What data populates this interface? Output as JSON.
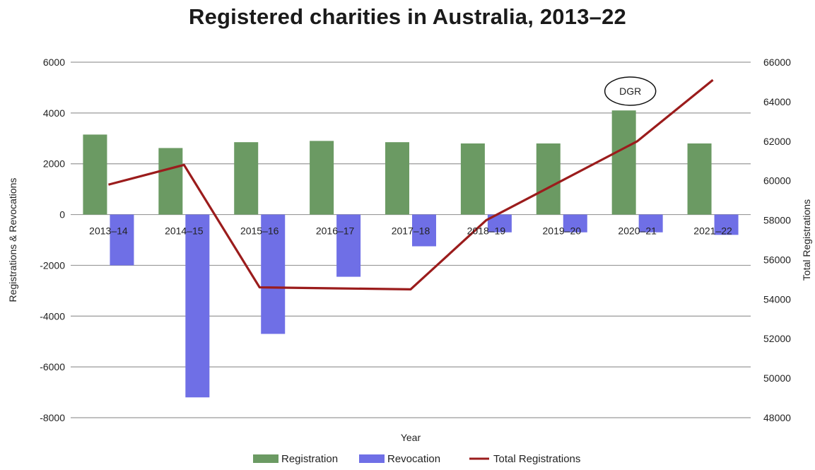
{
  "title": "Registered charities in Australia, 2013–22",
  "chart_data": {
    "type": "bar+line",
    "categories": [
      "2013–14",
      "2014–15",
      "2015–16",
      "2016–17",
      "2017–18",
      "2018–19",
      "2019–20",
      "2020–21",
      "2021–22"
    ],
    "series": [
      {
        "name": "Registration",
        "type": "bar",
        "axis": "left",
        "color": "#6b9a63",
        "values": [
          3150,
          2620,
          2850,
          2900,
          2850,
          2800,
          2800,
          4100,
          2800
        ]
      },
      {
        "name": "Revocation",
        "type": "bar",
        "axis": "left",
        "color": "#6f6fe6",
        "values": [
          -2000,
          -7200,
          -4700,
          -2450,
          -1250,
          -700,
          -700,
          -700,
          -800
        ]
      },
      {
        "name": "Total Registrations",
        "type": "line",
        "axis": "right",
        "color": "#9b1c1c",
        "values": [
          59800,
          60800,
          54600,
          54550,
          54500,
          58000,
          60000,
          62000,
          65100
        ]
      }
    ],
    "xlabel": "Year",
    "ylabel_left": "Registrations & Revocations",
    "ylabel_right": "Total Registrations",
    "ylim_left": [
      -8000,
      6000
    ],
    "ylim_right": [
      48000,
      66000
    ],
    "yticks_left": [
      6000,
      4000,
      2000,
      0,
      -2000,
      -4000,
      -6000,
      -8000
    ],
    "yticks_right": [
      66000,
      64000,
      62000,
      60000,
      58000,
      56000,
      54000,
      52000,
      50000,
      48000
    ],
    "grid": true,
    "legend_position": "bottom",
    "annotation": {
      "text": "DGR",
      "category": "2020–21"
    }
  }
}
